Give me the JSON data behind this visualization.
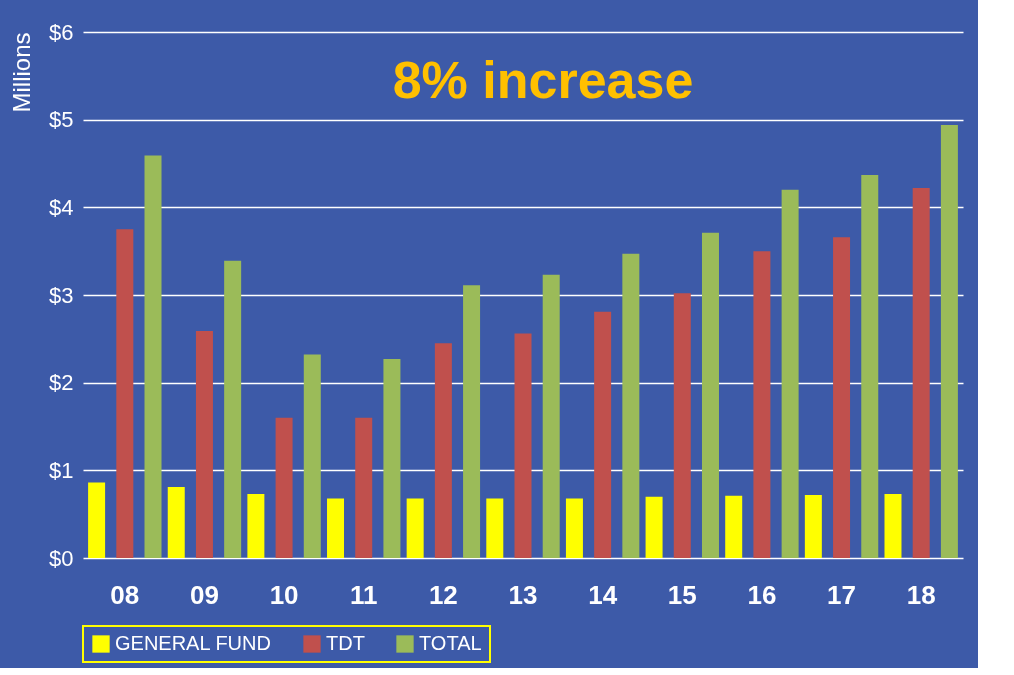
{
  "chart_data": {
    "type": "bar",
    "categories": [
      "08",
      "09",
      "10",
      "11",
      "12",
      "13",
      "14",
      "15",
      "16",
      "17",
      "18"
    ],
    "series": [
      {
        "name": "GENERAL FUND",
        "color": "#ffff00",
        "values": [
          0.86,
          0.81,
          0.73,
          0.68,
          0.68,
          0.68,
          0.68,
          0.7,
          0.71,
          0.72,
          0.73
        ]
      },
      {
        "name": "TDT",
        "color": "#c0504d",
        "values": [
          3.75,
          2.59,
          1.6,
          1.6,
          2.45,
          2.56,
          2.81,
          3.02,
          3.5,
          3.66,
          4.22
        ]
      },
      {
        "name": "TOTAL",
        "color": "#9bbb59",
        "values": [
          4.59,
          3.39,
          2.32,
          2.27,
          3.11,
          3.23,
          3.47,
          3.71,
          4.2,
          4.37,
          4.94
        ]
      }
    ],
    "ylabel": "Millions",
    "ylim": [
      0,
      6
    ],
    "yticks": [
      {
        "value": 0,
        "label": "$0"
      },
      {
        "value": 1,
        "label": "$1"
      },
      {
        "value": 2,
        "label": "$2"
      },
      {
        "value": 3,
        "label": "$3"
      },
      {
        "value": 4,
        "label": "$4"
      },
      {
        "value": 5,
        "label": "$5"
      },
      {
        "value": 6,
        "label": "$6"
      }
    ],
    "annotations": [
      "8% increase"
    ],
    "grid": "y",
    "legend": "bottom"
  }
}
